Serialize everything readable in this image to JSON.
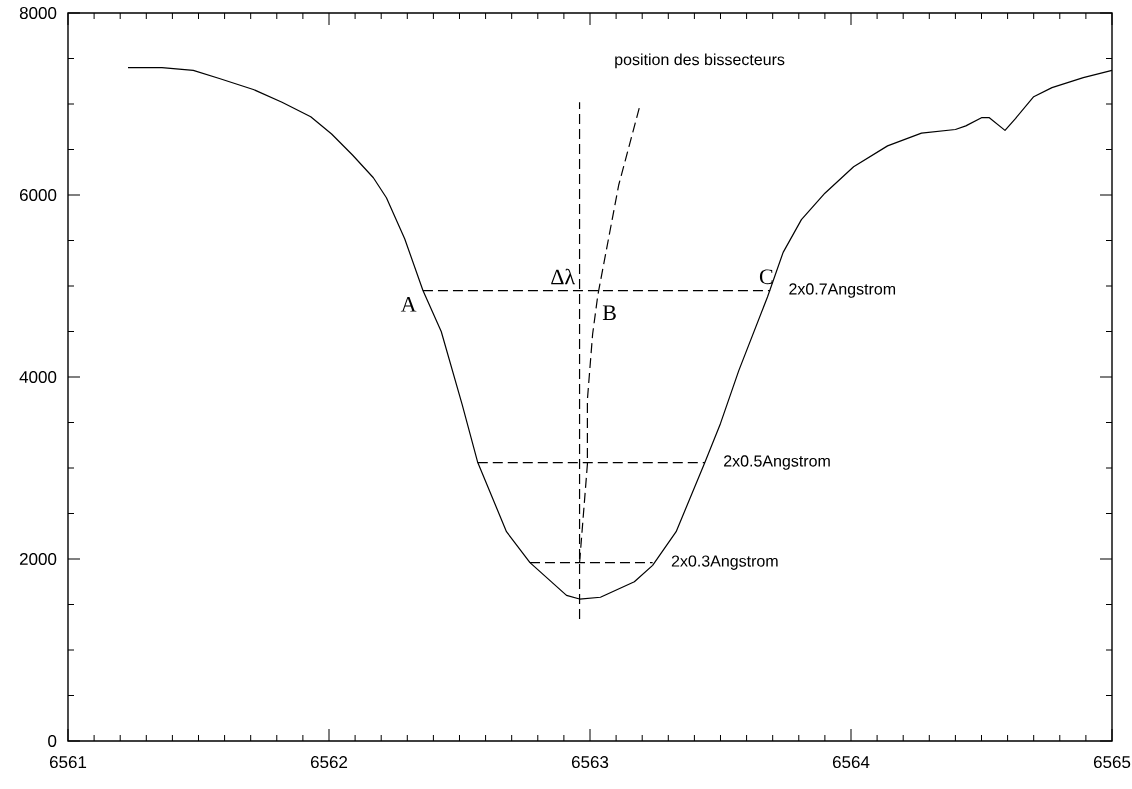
{
  "chart_data": {
    "type": "line",
    "xlim": [
      6561,
      6565
    ],
    "ylim": [
      0,
      8000
    ],
    "xticks": [
      6561,
      6562,
      6563,
      6564,
      6565
    ],
    "yticks": [
      0,
      2000,
      4000,
      6000,
      8000
    ],
    "grid": false,
    "marker": "none",
    "series": [
      {
        "color": "#000000",
        "line_style": "solid",
        "x": [
          6561.23,
          6561.36,
          6561.48,
          6561.58,
          6561.71,
          6561.82,
          6561.93,
          6562.01,
          6562.09,
          6562.17,
          6562.22,
          6562.29,
          6562.36,
          6562.43,
          6562.51,
          6562.57,
          6562.68,
          6562.77,
          6562.91,
          6562.96,
          6563.04,
          6563.17,
          6563.24,
          6563.33,
          6563.44,
          6563.5,
          6563.57,
          6563.68,
          6563.74,
          6563.81,
          6563.9,
          6564.01,
          6564.14,
          6564.27,
          6564.4,
          6564.44,
          6564.5,
          6564.53,
          6564.59,
          6564.63,
          6564.7,
          6564.77,
          6564.89,
          6565.0
        ],
        "values": [
          7400,
          7400,
          7370,
          7280,
          7160,
          7020,
          6860,
          6670,
          6440,
          6190,
          5970,
          5520,
          4950,
          4500,
          3700,
          3060,
          2300,
          1960,
          1600,
          1560,
          1580,
          1750,
          1930,
          2300,
          3060,
          3490,
          4070,
          4880,
          5370,
          5730,
          6020,
          6310,
          6540,
          6680,
          6720,
          6760,
          6850,
          6850,
          6710,
          6840,
          7080,
          7180,
          7290,
          7370
        ]
      },
      {
        "type": "line",
        "color": "#000000",
        "line_style": "dashed",
        "x": [
          6562.96,
          6562.96
        ],
        "values": [
          1340,
          7020
        ]
      },
      {
        "type": "line",
        "color": "#000000",
        "line_style": "dashed",
        "x": [
          6562.96,
          6562.99,
          6562.99,
          6563.01,
          6563.03,
          6563.11,
          6563.19
        ],
        "values": [
          1960,
          3040,
          3750,
          4470,
          4900,
          6110,
          6970
        ]
      },
      {
        "type": "line",
        "color": "#000000",
        "line_style": "dashed",
        "x": [
          6562.36,
          6563.69
        ],
        "values": [
          4950,
          4950
        ]
      },
      {
        "type": "line",
        "color": "#000000",
        "line_style": "dashed",
        "x": [
          6562.57,
          6563.44
        ],
        "values": [
          3060,
          3060
        ]
      },
      {
        "type": "line",
        "color": "#000000",
        "line_style": "dashed",
        "x": [
          6562.77,
          6563.24
        ],
        "values": [
          1960,
          1960
        ]
      }
    ],
    "annotations": [
      {
        "text": "A",
        "x": 6562.36,
        "y": 4950
      },
      {
        "text": "Δλ",
        "x": 6562.96,
        "y": 4950
      },
      {
        "text": "B",
        "x": 6563.03,
        "y": 4900
      },
      {
        "text": "C",
        "x": 6563.69,
        "y": 4950
      },
      {
        "text": "2x0.7Angstrom",
        "x": 6563.69,
        "y": 4950
      },
      {
        "text": "2x0.5Angstrom",
        "x": 6563.44,
        "y": 3060
      },
      {
        "text": "2x0.3Angstrom",
        "x": 6563.24,
        "y": 1960
      },
      {
        "text": "position des bissecteurs",
        "x": 6563.19,
        "y": 6970
      }
    ]
  }
}
